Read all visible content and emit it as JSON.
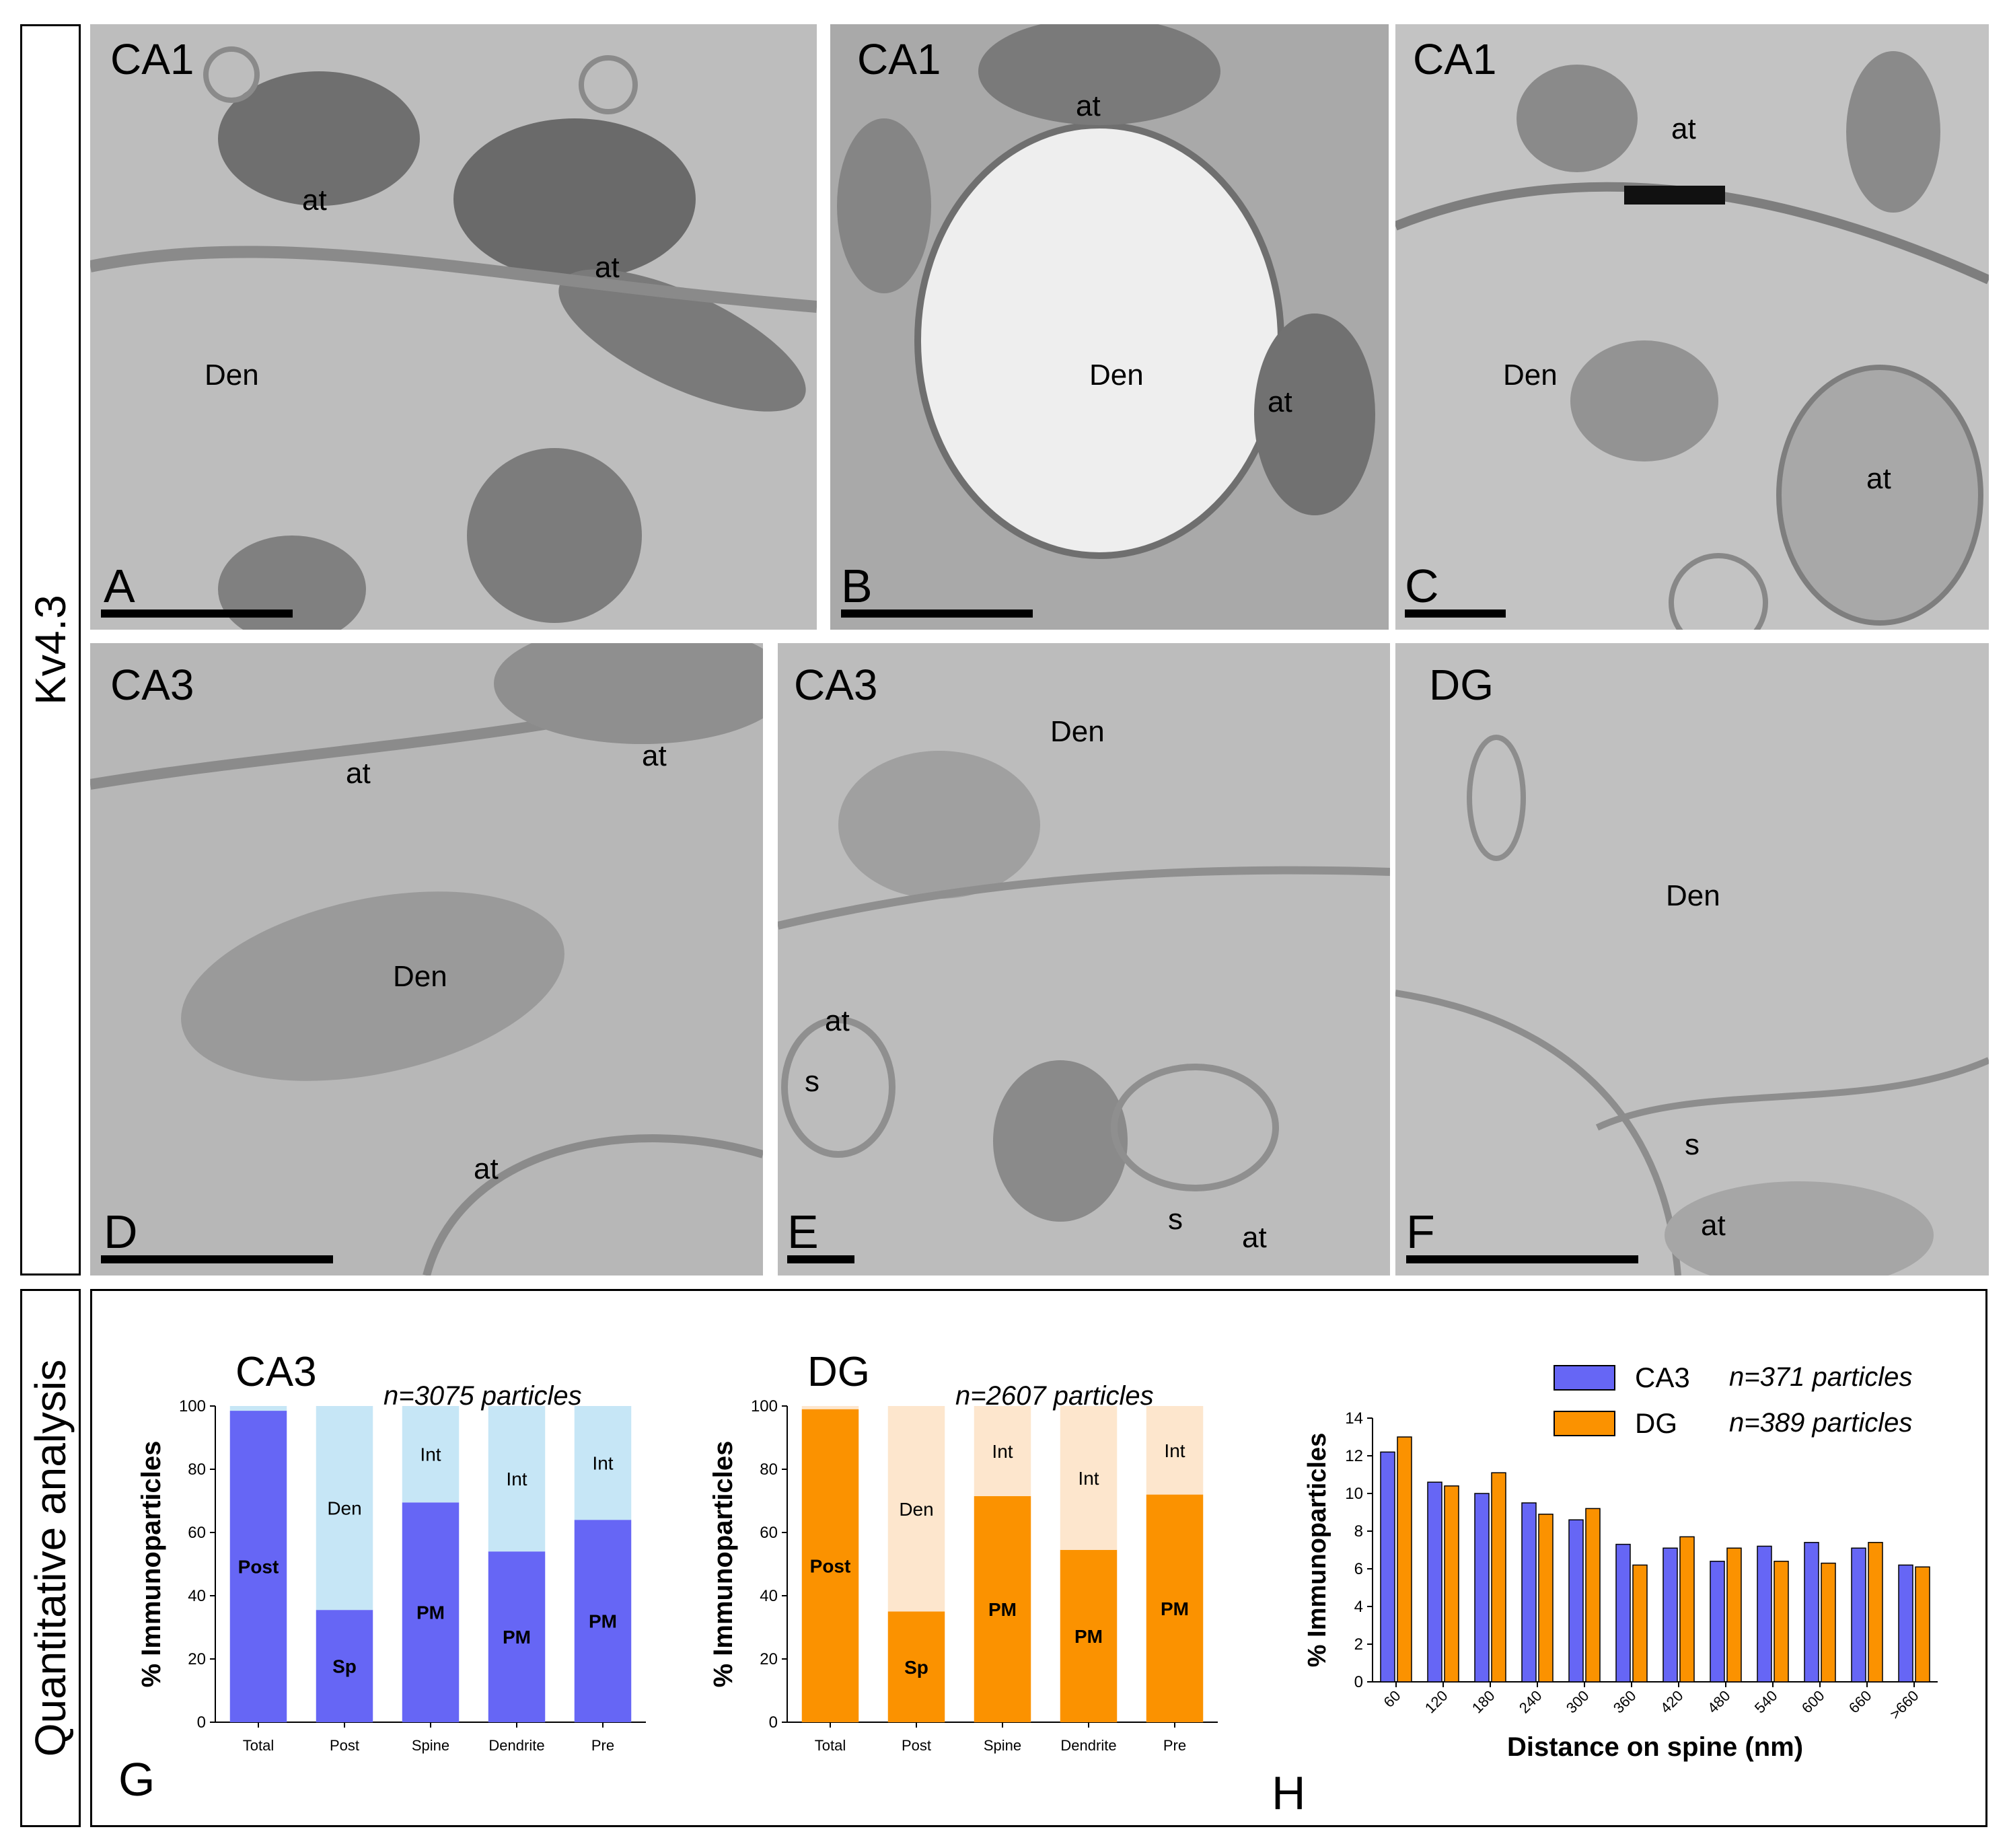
{
  "row_labels": {
    "top": "Kv4.3",
    "bottom": "Quantitative analysis"
  },
  "panels": [
    {
      "letter": "A",
      "region": "CA1",
      "labels": [
        {
          "text": "at"
        },
        {
          "text": "at"
        },
        {
          "text": "Den"
        }
      ]
    },
    {
      "letter": "B",
      "region": "CA1",
      "labels": [
        {
          "text": "at"
        },
        {
          "text": "Den"
        },
        {
          "text": "at"
        }
      ]
    },
    {
      "letter": "C",
      "region": "CA1",
      "labels": [
        {
          "text": "at"
        },
        {
          "text": "Den"
        },
        {
          "text": "at"
        }
      ]
    },
    {
      "letter": "D",
      "region": "CA3",
      "labels": [
        {
          "text": "at"
        },
        {
          "text": "at"
        },
        {
          "text": "Den"
        },
        {
          "text": "at"
        }
      ]
    },
    {
      "letter": "E",
      "region": "CA3",
      "labels": [
        {
          "text": "Den"
        },
        {
          "text": "at"
        },
        {
          "text": "s"
        },
        {
          "text": "s"
        },
        {
          "text": "at"
        }
      ]
    },
    {
      "letter": "F",
      "region": "DG",
      "labels": [
        {
          "text": "Den"
        },
        {
          "text": "s"
        },
        {
          "text": "at"
        }
      ]
    }
  ],
  "letters": {
    "G": "G",
    "H": "H"
  },
  "colors": {
    "ca3_dark": "#6666f5",
    "ca3_light": "#c6e6f6",
    "dg_dark": "#fb9200",
    "dg_light": "#fde6cd"
  },
  "chart_data": [
    {
      "type": "bar",
      "stacked": true,
      "title": "CA3",
      "subtitle": "n=3075 particles",
      "ylabel": "% Immunoparticles",
      "ylim": [
        0,
        100
      ],
      "yticks": [
        0,
        20,
        40,
        60,
        80,
        100
      ],
      "categories": [
        "Total",
        "Post",
        "Spine",
        "Dendrite",
        "Pre"
      ],
      "series": [
        {
          "values": [
            98.5,
            35.5,
            69.5,
            54,
            64
          ],
          "labels": [
            "Post",
            "Sp",
            "PM",
            "PM",
            "PM"
          ]
        },
        {
          "values": [
            1.5,
            64.5,
            30.5,
            46,
            36
          ],
          "labels": [
            "",
            "Den",
            "Int",
            "Int",
            "Int"
          ]
        }
      ]
    },
    {
      "type": "bar",
      "stacked": true,
      "title": "DG",
      "subtitle": "n=2607 particles",
      "ylabel": "% Immunoparticles",
      "ylim": [
        0,
        100
      ],
      "yticks": [
        0,
        20,
        40,
        60,
        80,
        100
      ],
      "categories": [
        "Total",
        "Post",
        "Spine",
        "Dendrite",
        "Pre"
      ],
      "series": [
        {
          "values": [
            99,
            35,
            71.5,
            54.5,
            72
          ],
          "labels": [
            "Post",
            "Sp",
            "PM",
            "PM",
            "PM"
          ]
        },
        {
          "values": [
            1,
            65,
            28.5,
            45.5,
            28
          ],
          "labels": [
            "",
            "Den",
            "Int",
            "Int",
            "Int"
          ]
        }
      ]
    },
    {
      "type": "bar",
      "xlabel": "Distance on spine (nm)",
      "ylabel": "% Immunoparticles",
      "ylim": [
        0,
        14
      ],
      "yticks": [
        0,
        2,
        4,
        6,
        8,
        10,
        12,
        14
      ],
      "categories": [
        "60",
        "120",
        "180",
        "240",
        "300",
        "360",
        "420",
        "480",
        "540",
        "600",
        "660",
        ">660"
      ],
      "legend_position": "top-right",
      "series": [
        {
          "name": "CA3",
          "note": "n=371 particles",
          "values": [
            12.2,
            10.6,
            10.0,
            9.5,
            8.6,
            7.3,
            7.1,
            6.4,
            7.2,
            7.4,
            7.1,
            6.2
          ]
        },
        {
          "name": "DG",
          "note": "n=389 particles",
          "values": [
            13.0,
            10.4,
            11.1,
            8.9,
            9.2,
            6.2,
            7.7,
            7.1,
            6.4,
            6.3,
            7.4,
            6.1
          ]
        }
      ]
    }
  ]
}
